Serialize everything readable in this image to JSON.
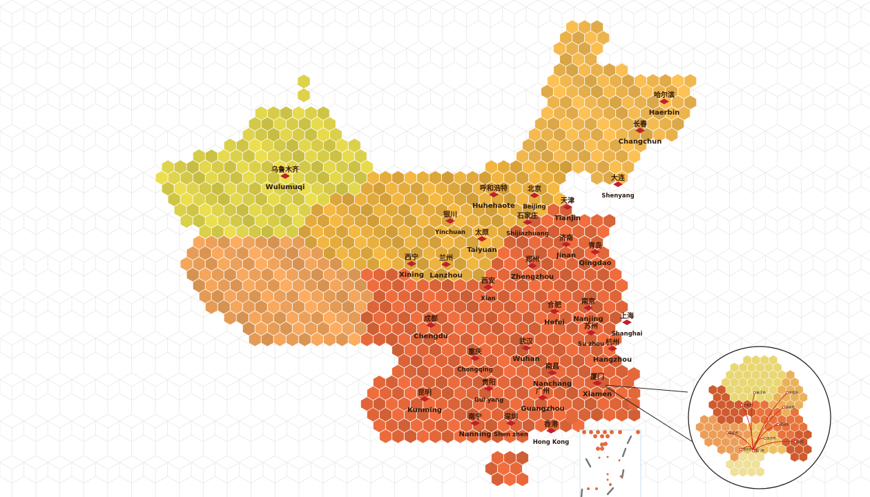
{
  "map": {
    "colors": {
      "northwest": "#ddd24a",
      "west": "#eea25a",
      "north": "#e7ae3e",
      "northeast": "#efb64e",
      "southeast": "#e5683a",
      "marker": "#c0202a",
      "grid": "#e4e4e4"
    },
    "cities": [
      {
        "zh": "乌鲁木齐",
        "en": "Wulumuqi"
      },
      {
        "zh": "哈尔滨",
        "en": "Haerbin"
      },
      {
        "zh": "长春",
        "en": "Changchun"
      },
      {
        "zh": "大连",
        "en": "Shenyang"
      },
      {
        "zh": "呼和浩特",
        "en": "Huhehaote"
      },
      {
        "zh": "北京",
        "en": "Beijing"
      },
      {
        "zh": "天津",
        "en": "Tianjin"
      },
      {
        "zh": "银川",
        "en": "Yinchuan"
      },
      {
        "zh": "石家庄",
        "en": "Shijiazhuang"
      },
      {
        "zh": "太原",
        "en": "Taiyuan"
      },
      {
        "zh": "济南",
        "en": "Jinan"
      },
      {
        "zh": "青岛",
        "en": "Qingdao"
      },
      {
        "zh": "西宁",
        "en": "Xining"
      },
      {
        "zh": "兰州",
        "en": "Lanzhou"
      },
      {
        "zh": "郑州",
        "en": "Zhengzhou"
      },
      {
        "zh": "西安",
        "en": "Xian"
      },
      {
        "zh": "合肥",
        "en": "Hefei"
      },
      {
        "zh": "南京",
        "en": "Nanjing"
      },
      {
        "zh": "苏州",
        "en": "Su zhou"
      },
      {
        "zh": "上海",
        "en": "Shanghai"
      },
      {
        "zh": "成都",
        "en": "Chengdu"
      },
      {
        "zh": "杭州",
        "en": "Hangzhou"
      },
      {
        "zh": "武汉",
        "en": "Wuhan"
      },
      {
        "zh": "重庆",
        "en": "Chongqing"
      },
      {
        "zh": "南昌",
        "en": "Nanchang"
      },
      {
        "zh": "厦门",
        "en": "Xiamen"
      },
      {
        "zh": "贵阳",
        "en": "Gui yang"
      },
      {
        "zh": "昆明",
        "en": "Kunming"
      },
      {
        "zh": "广州",
        "en": "Guangzhou"
      },
      {
        "zh": "深圳",
        "en": "Shen zhen"
      },
      {
        "zh": "南宁",
        "en": "Nanning"
      },
      {
        "zh": "香港",
        "en": "Hong Kong"
      }
    ],
    "inset": {
      "cities": [
        "南平市",
        "宁德市",
        "三明市",
        "福州市",
        "莆田市",
        "龙岩市",
        "泉州市",
        "漳州市",
        "厦门市",
        "台湾"
      ]
    }
  }
}
